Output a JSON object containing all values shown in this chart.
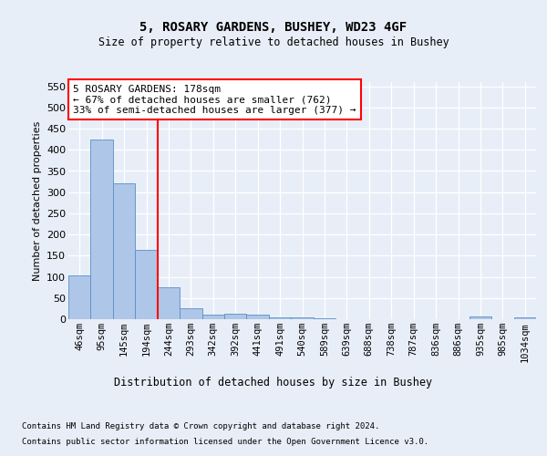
{
  "title1": "5, ROSARY GARDENS, BUSHEY, WD23 4GF",
  "title2": "Size of property relative to detached houses in Bushey",
  "xlabel": "Distribution of detached houses by size in Bushey",
  "ylabel": "Number of detached properties",
  "bin_labels": [
    "46sqm",
    "95sqm",
    "145sqm",
    "194sqm",
    "244sqm",
    "293sqm",
    "342sqm",
    "392sqm",
    "441sqm",
    "491sqm",
    "540sqm",
    "589sqm",
    "639sqm",
    "688sqm",
    "738sqm",
    "787sqm",
    "836sqm",
    "886sqm",
    "935sqm",
    "985sqm",
    "1034sqm"
  ],
  "bar_heights": [
    104,
    425,
    320,
    163,
    75,
    25,
    11,
    12,
    10,
    4,
    5,
    2,
    1,
    0,
    1,
    0,
    0,
    0,
    6,
    0,
    4
  ],
  "bar_color": "#aec6e8",
  "bar_edgecolor": "#5a8fc2",
  "vline_x": 3.5,
  "vline_color": "red",
  "annotation_text": "5 ROSARY GARDENS: 178sqm\n← 67% of detached houses are smaller (762)\n33% of semi-detached houses are larger (377) →",
  "annotation_box_color": "white",
  "annotation_box_edgecolor": "red",
  "ylim": [
    0,
    560
  ],
  "yticks": [
    0,
    50,
    100,
    150,
    200,
    250,
    300,
    350,
    400,
    450,
    500,
    550
  ],
  "footer1": "Contains HM Land Registry data © Crown copyright and database right 2024.",
  "footer2": "Contains public sector information licensed under the Open Government Licence v3.0.",
  "background_color": "#e8eef8",
  "plot_background": "#e8eef8"
}
